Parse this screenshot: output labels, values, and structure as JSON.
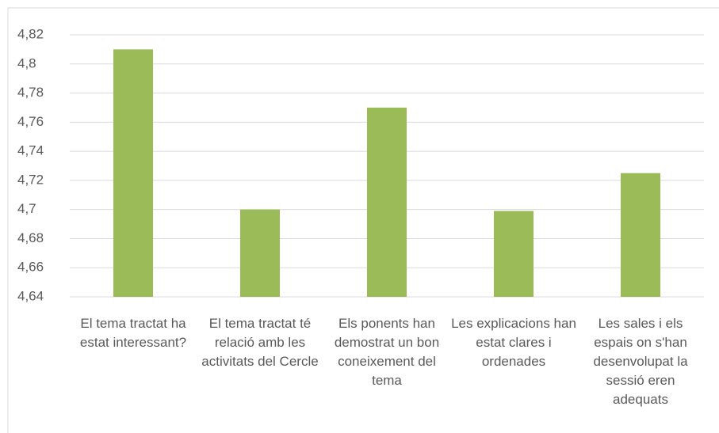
{
  "chart_data": {
    "type": "bar",
    "categories": [
      "El tema tractat ha estat interessant?",
      "El tema tractat té relació amb les activitats del Cercle",
      "Els ponents han demostrat un bon coneixement del tema",
      "Les explicacions han estat clares i ordenades",
      "Les sales i els espais on s'han desenvolupat la sessió eren adequats"
    ],
    "values": [
      4.81,
      4.7,
      4.77,
      4.699,
      4.725
    ],
    "color": "#9bbb59",
    "ylim": [
      4.64,
      4.82
    ],
    "yticks": [
      {
        "value": 4.64,
        "label": "4,64"
      },
      {
        "value": 4.66,
        "label": "4,66"
      },
      {
        "value": 4.68,
        "label": "4,68"
      },
      {
        "value": 4.7,
        "label": "4,7"
      },
      {
        "value": 4.72,
        "label": "4,72"
      },
      {
        "value": 4.74,
        "label": "4,74"
      },
      {
        "value": 4.76,
        "label": "4,76"
      },
      {
        "value": 4.78,
        "label": "4,78"
      },
      {
        "value": 4.8,
        "label": "4,8"
      },
      {
        "value": 4.82,
        "label": "4,82"
      }
    ],
    "grid": true
  }
}
